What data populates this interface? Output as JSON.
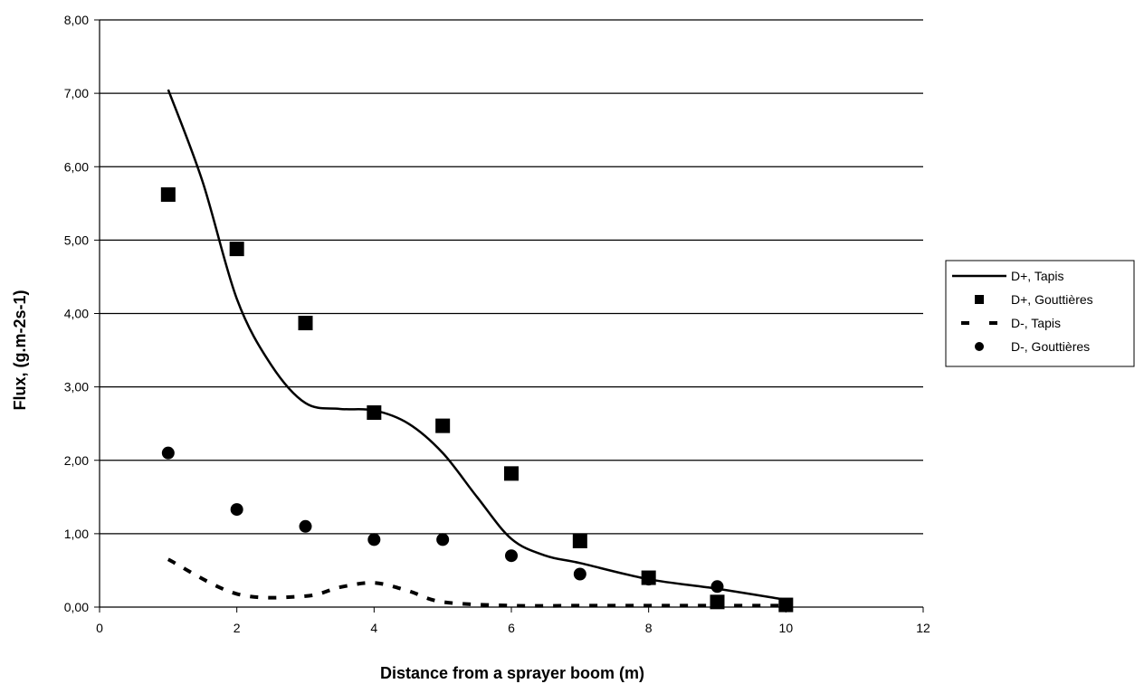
{
  "chart_data": {
    "type": "scatter",
    "title": "",
    "xlabel": "Distance from a sprayer boom (m)",
    "ylabel": "Flux, (g.m-2s-1)",
    "xlim": [
      0,
      12
    ],
    "ylim": [
      0,
      8
    ],
    "x_ticks": [
      "0",
      "2",
      "4",
      "6",
      "8",
      "10",
      "12"
    ],
    "y_ticks": [
      "0,00",
      "1,00",
      "2,00",
      "3,00",
      "4,00",
      "5,00",
      "6,00",
      "7,00",
      "8,00"
    ],
    "grid": "horizontal",
    "legend_position": "right",
    "series": [
      {
        "name": "D+, Tapis",
        "style": "solid-line",
        "color": "#000000",
        "x": [
          1,
          1.5,
          2,
          2.5,
          3,
          3.5,
          4,
          4.5,
          5,
          5.5,
          6,
          6.5,
          7,
          8,
          9,
          10
        ],
        "y": [
          7.05,
          5.8,
          4.2,
          3.3,
          2.78,
          2.7,
          2.68,
          2.5,
          2.1,
          1.5,
          0.93,
          0.7,
          0.6,
          0.38,
          0.25,
          0.1
        ]
      },
      {
        "name": "D+, Gouttières",
        "style": "square-markers",
        "color": "#000000",
        "x": [
          1,
          2,
          3,
          4,
          5,
          6,
          7,
          8,
          9,
          10
        ],
        "y": [
          5.62,
          4.88,
          3.87,
          2.65,
          2.47,
          1.82,
          0.9,
          0.4,
          0.07,
          0.03
        ]
      },
      {
        "name": "D-, Tapis",
        "style": "dashed-line",
        "color": "#000000",
        "x": [
          1,
          2,
          3,
          3.5,
          4,
          4.5,
          5,
          6,
          7,
          8,
          9,
          10
        ],
        "y": [
          0.65,
          0.18,
          0.15,
          0.27,
          0.33,
          0.22,
          0.07,
          0.02,
          0.02,
          0.02,
          0.02,
          0.02
        ]
      },
      {
        "name": "D-, Gouttières",
        "style": "circle-markers",
        "color": "#000000",
        "x": [
          1,
          2,
          3,
          4,
          5,
          6,
          7,
          8,
          9,
          10
        ],
        "y": [
          2.1,
          1.33,
          1.1,
          0.92,
          0.92,
          0.7,
          0.45,
          0.38,
          0.28,
          0.03
        ]
      }
    ]
  }
}
